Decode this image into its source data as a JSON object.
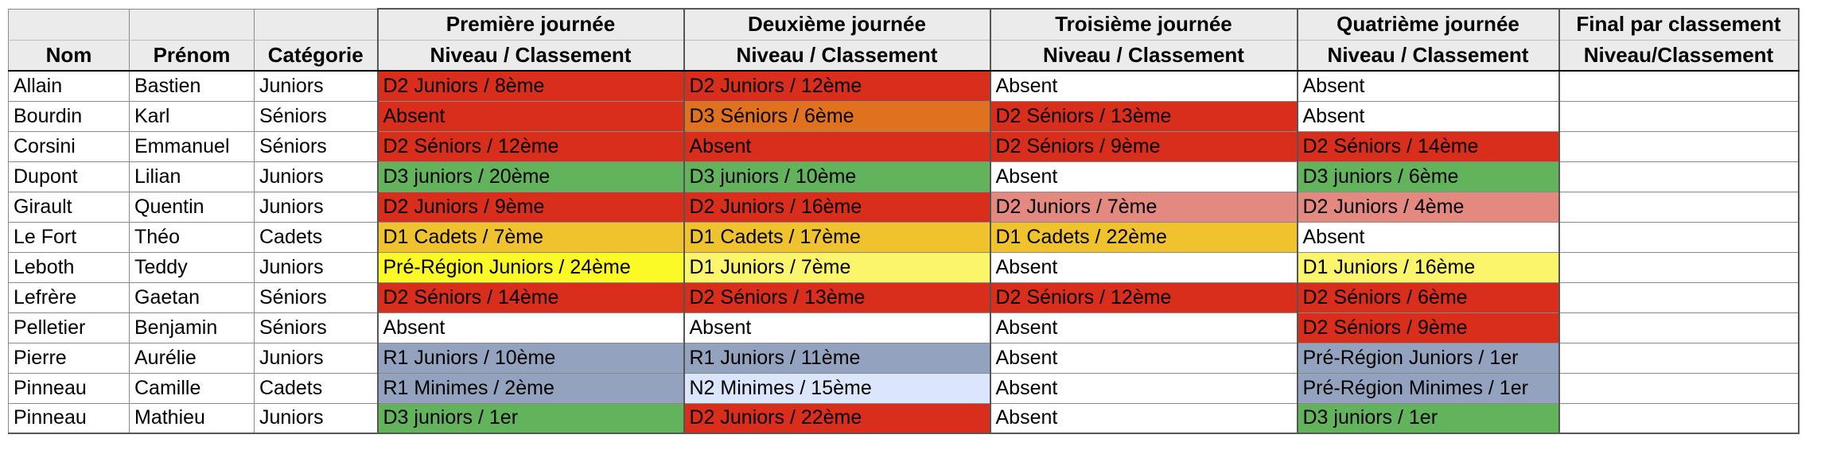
{
  "header": {
    "row1": [
      "",
      "",
      "",
      "Première journée",
      "Deuxième journée",
      "Troisième journée",
      "Quatrième journée",
      "Final par classement"
    ],
    "row2": [
      "Nom",
      "Prénom",
      "Catégorie",
      "Niveau / Classement",
      "Niveau / Classement",
      "Niveau / Classement",
      "Niveau / Classement",
      "Niveau/Classement"
    ]
  },
  "cell_colors": {
    "red": "#d92e1c",
    "orange": "#e0711e",
    "green": "#62b35c",
    "pink": "#e4897f",
    "gold": "#f0c22e",
    "yellow": "#fbfa26",
    "lightyellow": "#fbf56b",
    "blue": "#93a3bf",
    "lightblue": "#dbe5fb",
    "white": "#ffffff"
  },
  "rows": [
    {
      "nom": "Allain",
      "prenom": "Bastien",
      "categorie": "Juniors",
      "j": [
        {
          "text": "D2 Juniors / 8ème",
          "color": "red"
        },
        {
          "text": "D2 Juniors / 12ème",
          "color": "red"
        },
        {
          "text": "Absent",
          "color": "white"
        },
        {
          "text": "Absent",
          "color": "white"
        }
      ],
      "final": ""
    },
    {
      "nom": "Bourdin",
      "prenom": "Karl",
      "categorie": "Séniors",
      "j": [
        {
          "text": "Absent",
          "color": "red"
        },
        {
          "text": "D3 Séniors / 6ème",
          "color": "orange"
        },
        {
          "text": "D2 Séniors / 13ème",
          "color": "red"
        },
        {
          "text": "Absent",
          "color": "white"
        }
      ],
      "final": ""
    },
    {
      "nom": "Corsini",
      "prenom": "Emmanuel",
      "categorie": "Séniors",
      "j": [
        {
          "text": "D2 Séniors / 12ème",
          "color": "red"
        },
        {
          "text": "Absent",
          "color": "red"
        },
        {
          "text": "D2 Séniors / 9ème",
          "color": "red"
        },
        {
          "text": "D2 Séniors / 14ème",
          "color": "red"
        }
      ],
      "final": ""
    },
    {
      "nom": "Dupont",
      "prenom": "Lilian",
      "categorie": "Juniors",
      "j": [
        {
          "text": "D3 juniors / 20ème",
          "color": "green"
        },
        {
          "text": "D3 juniors / 10ème",
          "color": "green"
        },
        {
          "text": "Absent",
          "color": "white"
        },
        {
          "text": "D3 juniors / 6ème",
          "color": "green"
        }
      ],
      "final": ""
    },
    {
      "nom": "Girault",
      "prenom": "Quentin",
      "categorie": "Juniors",
      "j": [
        {
          "text": "D2 Juniors / 9ème",
          "color": "red"
        },
        {
          "text": "D2 Juniors / 16ème",
          "color": "red"
        },
        {
          "text": "D2 Juniors / 7ème",
          "color": "pink"
        },
        {
          "text": "D2 Juniors / 4ème",
          "color": "pink"
        }
      ],
      "final": ""
    },
    {
      "nom": "Le Fort",
      "prenom": "Théo",
      "categorie": "Cadets",
      "j": [
        {
          "text": "D1 Cadets / 7ème",
          "color": "gold"
        },
        {
          "text": "D1 Cadets / 17ème",
          "color": "gold"
        },
        {
          "text": "D1 Cadets / 22ème",
          "color": "gold"
        },
        {
          "text": "Absent",
          "color": "white"
        }
      ],
      "final": ""
    },
    {
      "nom": "Leboth",
      "prenom": "Teddy",
      "categorie": "Juniors",
      "j": [
        {
          "text": "Pré-Région Juniors / 24ème",
          "color": "yellow"
        },
        {
          "text": "D1 Juniors / 7ème",
          "color": "lightyellow"
        },
        {
          "text": "Absent",
          "color": "white"
        },
        {
          "text": "D1 Juniors / 16ème",
          "color": "lightyellow"
        }
      ],
      "final": ""
    },
    {
      "nom": "Lefrère",
      "prenom": "Gaetan",
      "categorie": "Séniors",
      "j": [
        {
          "text": "D2 Séniors / 14ème",
          "color": "red"
        },
        {
          "text": "D2 Séniors / 13ème",
          "color": "red"
        },
        {
          "text": "D2 Séniors / 12ème",
          "color": "red"
        },
        {
          "text": "D2 Séniors / 6ème",
          "color": "red"
        }
      ],
      "final": ""
    },
    {
      "nom": "Pelletier",
      "prenom": "Benjamin",
      "categorie": "Séniors",
      "j": [
        {
          "text": "Absent",
          "color": "white"
        },
        {
          "text": "Absent",
          "color": "white"
        },
        {
          "text": "Absent",
          "color": "white"
        },
        {
          "text": "D2 Séniors / 9ème",
          "color": "red"
        }
      ],
      "final": ""
    },
    {
      "nom": "Pierre",
      "prenom": "Aurélie",
      "categorie": "Juniors",
      "j": [
        {
          "text": "R1 Juniors / 10ème",
          "color": "blue"
        },
        {
          "text": "R1 Juniors / 11ème",
          "color": "blue"
        },
        {
          "text": "Absent",
          "color": "white"
        },
        {
          "text": "Pré-Région Juniors / 1er",
          "color": "blue"
        }
      ],
      "final": ""
    },
    {
      "nom": "Pinneau",
      "prenom": "Camille",
      "categorie": "Cadets",
      "j": [
        {
          "text": "R1 Minimes / 2ème",
          "color": "blue"
        },
        {
          "text": "N2 Minimes / 15ème",
          "color": "lightblue"
        },
        {
          "text": "Absent",
          "color": "white"
        },
        {
          "text": "Pré-Région Minimes / 1er",
          "color": "blue"
        }
      ],
      "final": ""
    },
    {
      "nom": "Pinneau",
      "prenom": "Mathieu",
      "categorie": "Juniors",
      "j": [
        {
          "text": "D3 juniors / 1er",
          "color": "green"
        },
        {
          "text": "D2 Juniors / 22ème",
          "color": "red"
        },
        {
          "text": "Absent",
          "color": "white"
        },
        {
          "text": "D3 juniors / 1er",
          "color": "green"
        }
      ],
      "final": ""
    }
  ]
}
